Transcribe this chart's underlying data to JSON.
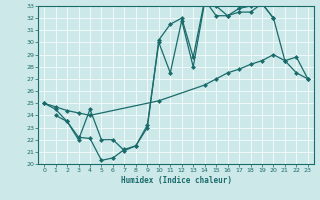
{
  "xlabel": "Humidex (Indice chaleur)",
  "bg_color": "#cce8e8",
  "line_color": "#1a6b6b",
  "xlim": [
    -0.5,
    23.5
  ],
  "ylim": [
    20,
    33
  ],
  "xticks": [
    0,
    1,
    2,
    3,
    4,
    5,
    6,
    7,
    8,
    9,
    10,
    11,
    12,
    13,
    14,
    15,
    16,
    17,
    18,
    19,
    20,
    21,
    22,
    23
  ],
  "yticks": [
    20,
    21,
    22,
    23,
    24,
    25,
    26,
    27,
    28,
    29,
    30,
    31,
    32,
    33
  ],
  "line1_x": [
    0,
    1,
    2,
    3,
    4,
    5,
    6,
    7,
    8,
    9,
    10,
    11,
    12,
    13,
    14,
    15,
    16,
    17,
    18,
    19,
    20,
    21,
    22,
    23
  ],
  "line1_y": [
    25.0,
    24.5,
    23.5,
    22.2,
    22.1,
    20.3,
    20.5,
    21.2,
    21.5,
    23.2,
    30.0,
    27.5,
    31.8,
    28.0,
    33.3,
    33.0,
    32.2,
    32.5,
    32.5,
    33.2,
    32.0,
    28.5,
    27.5,
    27.0
  ],
  "line2_x": [
    0,
    1,
    2,
    3,
    4,
    10,
    14,
    15,
    16,
    17,
    18,
    19,
    20,
    21,
    22,
    23
  ],
  "line2_y": [
    25.0,
    24.7,
    24.4,
    24.2,
    24.0,
    25.2,
    26.5,
    27.0,
    27.5,
    27.8,
    28.2,
    28.5,
    29.0,
    28.5,
    28.8,
    27.0
  ],
  "line3_x": [
    1,
    2,
    3,
    4,
    5,
    6,
    7,
    8,
    9,
    10,
    11,
    12,
    13,
    14,
    15,
    16,
    17,
    18,
    19,
    20
  ],
  "line3_y": [
    24.0,
    23.5,
    22.0,
    24.5,
    22.0,
    22.0,
    21.1,
    21.5,
    23.0,
    30.2,
    31.5,
    32.0,
    28.8,
    33.5,
    32.2,
    32.2,
    32.8,
    33.0,
    33.2,
    32.0
  ],
  "marker": "D",
  "markersize": 2.5,
  "linewidth": 0.9
}
